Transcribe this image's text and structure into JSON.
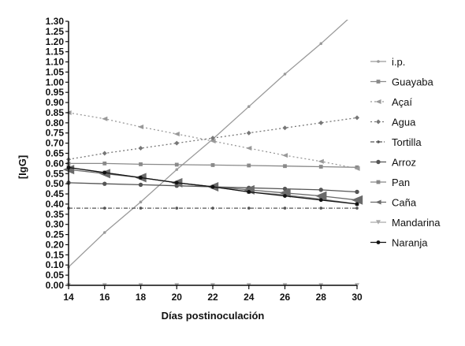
{
  "chart_data": {
    "type": "line",
    "xlabel": "Días postinoculación",
    "ylabel": "[IgG]",
    "xlim": [
      14,
      30
    ],
    "ylim": [
      0,
      1.3
    ],
    "x_ticks": [
      "14",
      "16",
      "18",
      "20",
      "22",
      "24",
      "26",
      "28",
      "30"
    ],
    "y_ticks": [
      "0.00",
      "0.05",
      "0.10",
      "0.15",
      "0.20",
      "0.25",
      "0.30",
      "0.35",
      "0.40",
      "0.45",
      "0.50",
      "0.55",
      "0.60",
      "0.65",
      "0.70",
      "0.75",
      "0.80",
      "0.85",
      "0.90",
      "0.95",
      "1.00",
      "1.05",
      "1.10",
      "1.15",
      "1.20",
      "1.25",
      "1.30"
    ],
    "grid": false,
    "legend_position": "right",
    "x": [
      14,
      16,
      18,
      20,
      22,
      24,
      26,
      28,
      30
    ],
    "series": [
      {
        "name": "i.p.",
        "color": "#9a9a9a",
        "dash": "",
        "marker": "dot-small",
        "values": [
          0.09,
          0.26,
          0.41,
          0.57,
          0.72,
          0.88,
          1.04,
          1.19,
          1.35
        ]
      },
      {
        "name": "Guayaba",
        "color": "#8a8a8a",
        "dash": "",
        "marker": "square",
        "values": [
          0.6,
          0.6,
          0.596,
          0.594,
          0.592,
          0.59,
          0.587,
          0.584,
          0.581
        ]
      },
      {
        "name": "Açaí",
        "color": "#999999",
        "dash": "2,3",
        "marker": "triangle-up",
        "values": [
          0.85,
          0.82,
          0.78,
          0.745,
          0.71,
          0.675,
          0.64,
          0.61,
          0.575
        ]
      },
      {
        "name": "Agua",
        "color": "#777777",
        "dash": "2,3",
        "marker": "diamond",
        "values": [
          0.62,
          0.65,
          0.675,
          0.7,
          0.725,
          0.75,
          0.775,
          0.8,
          0.825
        ]
      },
      {
        "name": "Tortilla",
        "color": "#555555",
        "dash": "5,2,1,2",
        "marker": "dot-small",
        "values": [
          0.38,
          0.38,
          0.38,
          0.38,
          0.38,
          0.38,
          0.38,
          0.38,
          0.38
        ]
      },
      {
        "name": "Arroz",
        "color": "#555555",
        "dash": "",
        "marker": "circle",
        "values": [
          0.505,
          0.5,
          0.495,
          0.49,
          0.485,
          0.48,
          0.475,
          0.47,
          0.46
        ]
      },
      {
        "name": "Pan",
        "color": "#888888",
        "dash": "",
        "marker": "square",
        "values": [
          0.58,
          0.555,
          0.53,
          0.505,
          0.485,
          0.46,
          0.445,
          0.425,
          0.4
        ]
      },
      {
        "name": "Caña",
        "color": "#6a6a6a",
        "dash": "",
        "marker": "triangle-up",
        "values": [
          0.57,
          0.55,
          0.53,
          0.505,
          0.485,
          0.47,
          0.455,
          0.44,
          0.42
        ]
      },
      {
        "name": "Mandarina",
        "color": "#aaaaaa",
        "dash": "",
        "marker": "triangle-down",
        "values": [
          0.0,
          0.0,
          0.0,
          0.0,
          0.0,
          0.0,
          0.0,
          0.0,
          0.0
        ]
      },
      {
        "name": "Naranja",
        "color": "#111111",
        "dash": "",
        "marker": "dot-filled",
        "values": [
          0.58,
          0.555,
          0.53,
          0.505,
          0.485,
          0.46,
          0.44,
          0.42,
          0.4
        ]
      }
    ]
  }
}
